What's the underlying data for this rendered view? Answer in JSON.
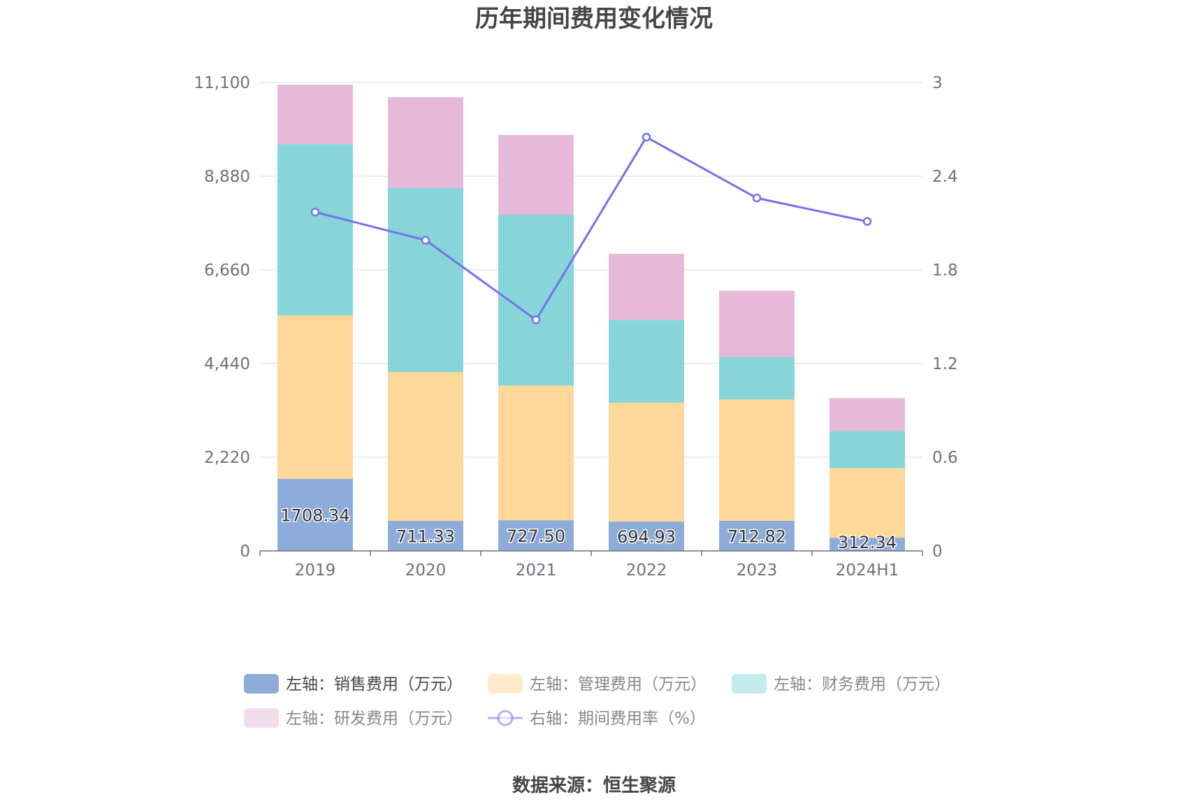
{
  "source_text": "数据来源：恒生聚源",
  "chart_data": {
    "type": "bar",
    "stacked": true,
    "title": "历年期间费用变化情况",
    "categories": [
      "2019",
      "2020",
      "2021",
      "2022",
      "2023",
      "2024H1"
    ],
    "y_left": {
      "min": 0,
      "max": 11100,
      "ticks": [
        "0",
        "2,220",
        "4,440",
        "6,660",
        "8,880",
        "11,100"
      ]
    },
    "y_right": {
      "min": 0,
      "max": 3,
      "ticks": [
        "0",
        "0.6",
        "1.2",
        "1.8",
        "2.4",
        "3"
      ]
    },
    "grid": true,
    "legend_position": "bottom",
    "series": [
      {
        "name": "左轴：销售费用（万元）",
        "type": "bar",
        "axis": "left",
        "color": "#8eacd9",
        "values": [
          1708.34,
          711.33,
          727.5,
          694.93,
          712.82,
          312.34
        ],
        "labels": [
          "1708.34",
          "711.33",
          "727.50",
          "694.93",
          "712.82",
          "312.34"
        ]
      },
      {
        "name": "左轴：管理费用（万元）",
        "type": "bar",
        "axis": "left",
        "color": "#fed899",
        "values": [
          3872,
          3530,
          3190,
          2817,
          2872,
          1648
        ]
      },
      {
        "name": "左轴：财务费用（万元）",
        "type": "bar",
        "axis": "left",
        "color": "#87d5d9",
        "values": [
          4060,
          4360,
          4050,
          1960,
          1010,
          880
        ]
      },
      {
        "name": "左轴：研发费用（万元）",
        "type": "bar",
        "axis": "left",
        "color": "#e6b9d9",
        "values": [
          1410,
          2150,
          1890,
          1570,
          1570,
          780
        ]
      },
      {
        "name": "右轴：期间费用率（%）",
        "type": "line",
        "axis": "right",
        "color": "#7472ec",
        "values": [
          2.17,
          1.99,
          1.48,
          2.65,
          2.26,
          2.11
        ]
      }
    ]
  }
}
